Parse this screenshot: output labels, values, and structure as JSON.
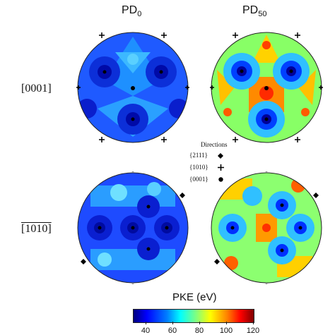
{
  "columns": [
    "PD",
    "PD"
  ],
  "column_subscripts": [
    "0",
    "50"
  ],
  "rows": [
    "[0001]",
    "[1010]"
  ],
  "legend": {
    "title": "Directions",
    "items": [
      {
        "label": "{2111}",
        "symbol": "diamond"
      },
      {
        "label": "{1010}",
        "symbol": "plus"
      },
      {
        "label": "{0001}",
        "symbol": "dot"
      }
    ]
  },
  "colorbar": {
    "title": "PKE (eV)",
    "min": 30,
    "max": 120,
    "ticks": [
      "40",
      "60",
      "80",
      "100",
      "120"
    ],
    "colors": [
      "#00007f",
      "#0000ff",
      "#00ffff",
      "#ffff00",
      "#ff0000",
      "#7f0000"
    ]
  }
}
